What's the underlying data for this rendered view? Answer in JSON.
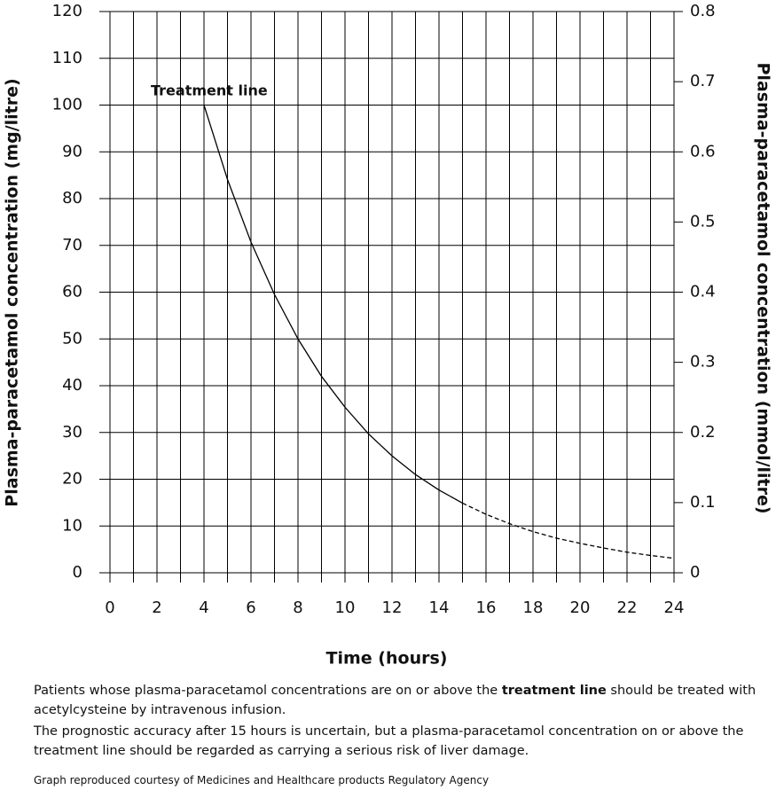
{
  "chart_data": {
    "type": "line",
    "xlabel": "Time (hours)",
    "ylabel": "Plasma-paracetamol concentration (mg/litre)",
    "y2label": "Plasma-paracetamol concentration (mmol/litre)",
    "annotation": "Treatment line",
    "xlim": [
      0,
      24
    ],
    "xticks": [
      0,
      2,
      4,
      6,
      8,
      10,
      12,
      14,
      16,
      18,
      20,
      22,
      24
    ],
    "xminor": [
      1,
      3,
      5,
      7,
      9,
      11,
      13,
      15,
      17,
      19,
      21,
      23
    ],
    "ylim": [
      0,
      120
    ],
    "yticks": [
      0,
      10,
      20,
      30,
      40,
      50,
      60,
      70,
      80,
      90,
      100,
      110,
      120
    ],
    "y2lim": [
      0,
      0.8
    ],
    "y2ticks": [
      0,
      0.1,
      0.2,
      0.3,
      0.4,
      0.5,
      0.6,
      0.7,
      0.8
    ],
    "grid": true,
    "series": [
      {
        "color": "#000000",
        "style": "solid",
        "x": [
          4,
          5,
          6,
          7,
          8,
          9,
          10,
          11,
          12,
          13,
          14,
          15
        ],
        "values": [
          100,
          84.1,
          70.7,
          59.5,
          50,
          42.0,
          35.4,
          29.7,
          25,
          21.0,
          17.7,
          14.9
        ]
      },
      {
        "color": "#000000",
        "style": "dashed",
        "x": [
          15,
          16,
          17,
          18,
          19,
          20,
          21,
          22,
          23,
          24
        ],
        "values": [
          14.9,
          12.5,
          10.5,
          8.8,
          7.4,
          6.3,
          5.3,
          4.4,
          3.7,
          3.1
        ]
      }
    ]
  },
  "notes": {
    "p1": [
      "Patients whose plasma-paracetamol concentrations are on or above the ",
      "treatment line",
      " should be treated with acetylcysteine by intravenous infusion."
    ],
    "p2": "The prognostic accuracy after 15 hours is uncertain, but a plasma-paracetamol concentration on or above the treatment line should be regarded as carrying a serious risk of liver damage.",
    "credit": "Graph reproduced courtesy of Medicines and Healthcare products Regulatory Agency"
  }
}
